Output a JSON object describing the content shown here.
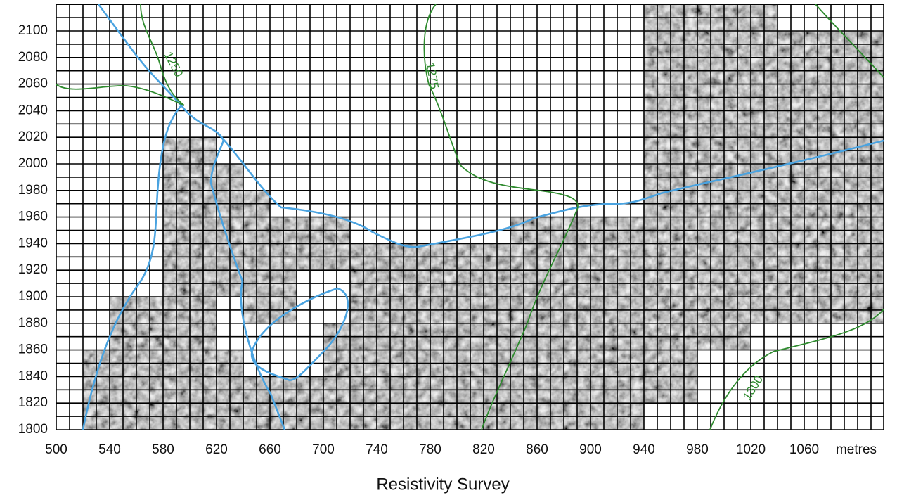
{
  "title": "Resistivity Survey",
  "x_axis": {
    "ticks": [
      "500",
      "540",
      "580",
      "620",
      "660",
      "700",
      "740",
      "780",
      "820",
      "860",
      "900",
      "940",
      "980",
      "1020",
      "1060"
    ],
    "unit": "metres"
  },
  "y_axis": {
    "ticks": [
      "1800",
      "1820",
      "1840",
      "1860",
      "1880",
      "1900",
      "1920",
      "1940",
      "1960",
      "1980",
      "2000",
      "2020",
      "2040",
      "2060",
      "2080",
      "2100"
    ]
  },
  "contours": [
    "1250",
    "1275",
    "1300"
  ]
}
